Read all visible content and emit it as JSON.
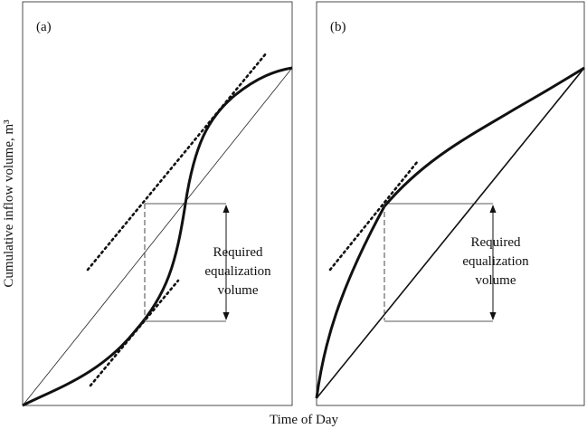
{
  "panels": [
    {
      "label": "(a)",
      "annotation": [
        "Required",
        "equalization",
        "volume"
      ]
    },
    {
      "label": "(b)",
      "annotation": [
        "Required",
        "equalization",
        "volume"
      ]
    }
  ],
  "y_axis_label": "Cumulative inflow volume, m³",
  "x_axis_label": "Time of Day"
}
